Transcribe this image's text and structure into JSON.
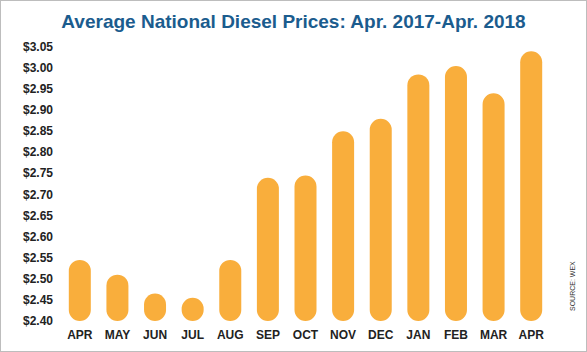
{
  "chart_data": {
    "type": "bar",
    "title": "Average National Diesel Prices: Apr. 2017-Apr. 2018",
    "source": "SOURCE: WEX",
    "categories": [
      "APR",
      "MAY",
      "JUN",
      "JUL",
      "AUG",
      "SEP",
      "OCT",
      "NOV",
      "DEC",
      "JAN",
      "FEB",
      "MAR",
      "APR"
    ],
    "values": [
      2.545,
      2.51,
      2.465,
      2.455,
      2.545,
      2.74,
      2.745,
      2.85,
      2.88,
      2.985,
      3.005,
      2.94,
      3.04
    ],
    "color": "#f9ae3c",
    "ylim": [
      2.4,
      3.05
    ],
    "yticks": [
      {
        "value": 2.4,
        "label": "$2.40"
      },
      {
        "value": 2.45,
        "label": "$2.45"
      },
      {
        "value": 2.5,
        "label": "$2.50"
      },
      {
        "value": 2.55,
        "label": "$2.55"
      },
      {
        "value": 2.6,
        "label": "$2.60"
      },
      {
        "value": 2.65,
        "label": "$2.65"
      },
      {
        "value": 2.7,
        "label": "$2.70"
      },
      {
        "value": 2.75,
        "label": "$2.75"
      },
      {
        "value": 2.8,
        "label": "$2.80"
      },
      {
        "value": 2.85,
        "label": "$2.85"
      },
      {
        "value": 2.9,
        "label": "$2.90"
      },
      {
        "value": 2.95,
        "label": "$2.95"
      },
      {
        "value": 3.0,
        "label": "$3.00"
      },
      {
        "value": 3.05,
        "label": "$3.05"
      }
    ],
    "grid": false
  }
}
